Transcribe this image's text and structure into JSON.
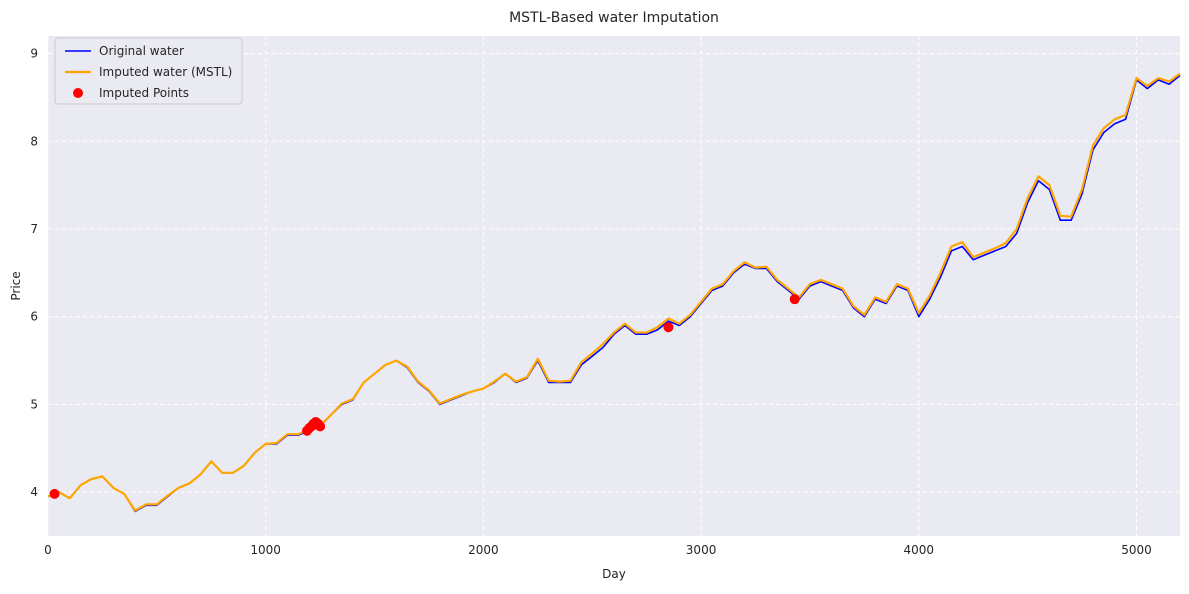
{
  "chart_data": {
    "type": "line",
    "title": "MSTL-Based water Imputation",
    "xlabel": "Day",
    "ylabel": "Price",
    "xlim": [
      0,
      5200
    ],
    "ylim": [
      3.5,
      9.2
    ],
    "xticks": [
      0,
      1000,
      2000,
      3000,
      4000,
      5000
    ],
    "yticks": [
      4,
      5,
      6,
      7,
      8,
      9
    ],
    "grid": true,
    "legend_position": "top-left",
    "colors": {
      "original": "#0000ff",
      "imputed": "#ffa500",
      "points": "#ff0000",
      "background": "#eaeaf2",
      "grid": "#ffffff"
    },
    "series": [
      {
        "name": "Original water",
        "style": "line",
        "x": [
          0,
          50,
          100,
          150,
          200,
          250,
          300,
          350,
          400,
          450,
          500,
          550,
          600,
          650,
          700,
          750,
          800,
          850,
          900,
          950,
          1000,
          1050,
          1100,
          1150,
          1200,
          1250,
          1300,
          1350,
          1400,
          1450,
          1500,
          1550,
          1600,
          1650,
          1700,
          1750,
          1800,
          1850,
          1900,
          1950,
          2000,
          2050,
          2100,
          2150,
          2200,
          2250,
          2300,
          2350,
          2400,
          2450,
          2500,
          2550,
          2600,
          2650,
          2700,
          2750,
          2800,
          2850,
          2900,
          2950,
          3000,
          3050,
          3100,
          3150,
          3200,
          3250,
          3300,
          3350,
          3400,
          3450,
          3500,
          3550,
          3600,
          3650,
          3700,
          3750,
          3800,
          3850,
          3900,
          3950,
          4000,
          4050,
          4100,
          4150,
          4200,
          4250,
          4300,
          4350,
          4400,
          4450,
          4500,
          4550,
          4600,
          4650,
          4700,
          4750,
          4800,
          4850,
          4900,
          4950,
          5000,
          5050,
          5100,
          5150,
          5200
        ],
        "y": [
          3.95,
          4.0,
          3.93,
          4.08,
          4.15,
          4.18,
          4.05,
          3.98,
          3.78,
          3.85,
          3.85,
          3.95,
          4.05,
          4.1,
          4.2,
          4.35,
          4.22,
          4.22,
          4.3,
          4.45,
          4.55,
          4.55,
          4.65,
          4.65,
          4.7,
          4.75,
          4.88,
          5.0,
          5.05,
          5.25,
          5.35,
          5.45,
          5.5,
          5.42,
          5.25,
          5.15,
          5.0,
          5.05,
          5.1,
          5.15,
          5.18,
          5.25,
          5.35,
          5.25,
          5.3,
          5.5,
          5.25,
          5.25,
          5.25,
          5.45,
          5.55,
          5.65,
          5.8,
          5.9,
          5.8,
          5.8,
          5.85,
          5.95,
          5.9,
          6.0,
          6.15,
          6.3,
          6.35,
          6.5,
          6.6,
          6.55,
          6.55,
          6.4,
          6.3,
          6.2,
          6.35,
          6.4,
          6.35,
          6.3,
          6.1,
          6.0,
          6.2,
          6.15,
          6.35,
          6.3,
          6.0,
          6.2,
          6.45,
          6.75,
          6.8,
          6.65,
          6.7,
          6.75,
          6.8,
          6.95,
          7.3,
          7.55,
          7.45,
          7.1,
          7.1,
          7.4,
          7.9,
          8.1,
          8.2,
          8.25,
          8.7,
          8.6,
          8.7,
          8.65,
          8.75
        ]
      },
      {
        "name": "Imputed water (MSTL)",
        "style": "line",
        "x": [
          0,
          50,
          100,
          150,
          200,
          250,
          300,
          350,
          400,
          450,
          500,
          550,
          600,
          650,
          700,
          750,
          800,
          850,
          900,
          950,
          1000,
          1050,
          1100,
          1150,
          1200,
          1250,
          1300,
          1350,
          1400,
          1450,
          1500,
          1550,
          1600,
          1650,
          1700,
          1750,
          1800,
          1850,
          1900,
          1950,
          2000,
          2050,
          2100,
          2150,
          2200,
          2250,
          2300,
          2350,
          2400,
          2450,
          2500,
          2550,
          2600,
          2650,
          2700,
          2750,
          2800,
          2850,
          2900,
          2950,
          3000,
          3050,
          3100,
          3150,
          3200,
          3250,
          3300,
          3350,
          3400,
          3450,
          3500,
          3550,
          3600,
          3650,
          3700,
          3750,
          3800,
          3850,
          3900,
          3950,
          4000,
          4050,
          4100,
          4150,
          4200,
          4250,
          4300,
          4350,
          4400,
          4450,
          4500,
          4550,
          4600,
          4650,
          4700,
          4750,
          4800,
          4850,
          4900,
          4950,
          5000,
          5050,
          5100,
          5150,
          5200
        ],
        "y": [
          3.95,
          4.0,
          3.93,
          4.08,
          4.15,
          4.18,
          4.05,
          3.98,
          3.79,
          3.86,
          3.86,
          3.96,
          4.05,
          4.1,
          4.2,
          4.35,
          4.22,
          4.22,
          4.3,
          4.45,
          4.55,
          4.56,
          4.66,
          4.66,
          4.72,
          4.76,
          4.88,
          5.01,
          5.06,
          5.25,
          5.35,
          5.45,
          5.5,
          5.43,
          5.26,
          5.16,
          5.01,
          5.06,
          5.11,
          5.15,
          5.18,
          5.26,
          5.35,
          5.26,
          5.31,
          5.52,
          5.27,
          5.26,
          5.27,
          5.48,
          5.58,
          5.69,
          5.82,
          5.92,
          5.82,
          5.82,
          5.88,
          5.98,
          5.92,
          6.02,
          6.17,
          6.32,
          6.37,
          6.52,
          6.62,
          6.56,
          6.57,
          6.42,
          6.32,
          6.22,
          6.37,
          6.42,
          6.37,
          6.32,
          6.12,
          6.02,
          6.22,
          6.17,
          6.37,
          6.32,
          6.04,
          6.24,
          6.5,
          6.8,
          6.85,
          6.68,
          6.73,
          6.78,
          6.84,
          7.0,
          7.35,
          7.6,
          7.5,
          7.15,
          7.14,
          7.45,
          7.95,
          8.15,
          8.25,
          8.3,
          8.72,
          8.63,
          8.72,
          8.68,
          8.77
        ]
      },
      {
        "name": "Imputed Points",
        "style": "scatter",
        "x": [
          30,
          1190,
          1200,
          1210,
          1220,
          1230,
          1240,
          1250,
          2850,
          3430
        ],
        "y": [
          3.98,
          4.7,
          4.73,
          4.75,
          4.78,
          4.8,
          4.78,
          4.75,
          5.88,
          6.2
        ]
      }
    ]
  }
}
